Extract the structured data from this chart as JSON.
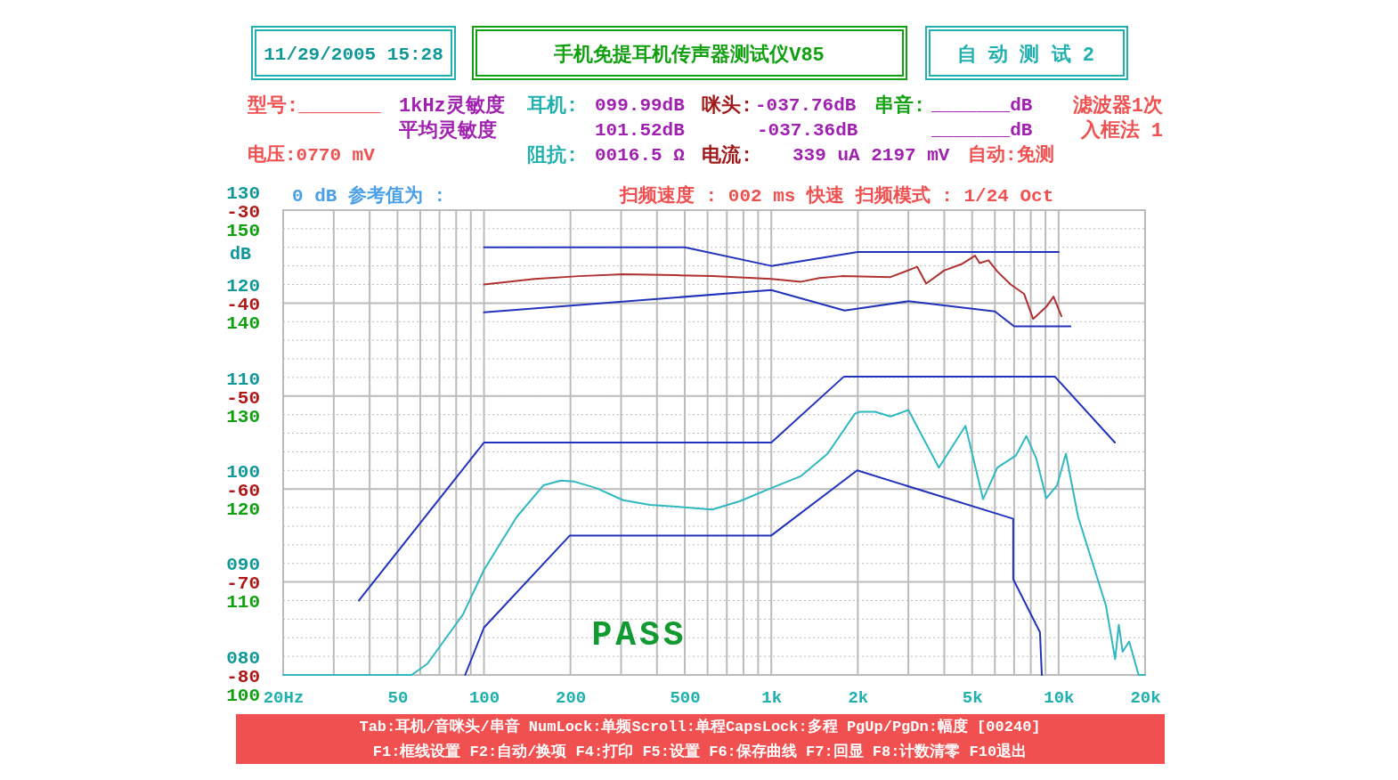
{
  "chart_data": {
    "type": "line",
    "title": "手机免提耳机传声器测试仪V85",
    "y2label": "dB",
    "log": "x",
    "grid": true,
    "xlim": [
      20,
      20000
    ],
    "xticks": [
      {
        "value": 20,
        "label": "20Hz"
      },
      {
        "value": 30,
        "label": null
      },
      {
        "value": 40,
        "label": null
      },
      50,
      {
        "value": 60,
        "label": null
      },
      {
        "value": 70,
        "label": null
      },
      {
        "value": 80,
        "label": null
      },
      {
        "value": 90,
        "label": null
      },
      100,
      200,
      {
        "value": 300,
        "label": null
      },
      {
        "value": 400,
        "label": null
      },
      500,
      {
        "value": 600,
        "label": null
      },
      {
        "value": 700,
        "label": null
      },
      {
        "value": 800,
        "label": null
      },
      {
        "value": 900,
        "label": null
      },
      {
        "value": 1000,
        "label": "1k"
      },
      {
        "value": 2000,
        "label": "2k"
      },
      {
        "value": 3000,
        "label": null
      },
      {
        "value": 4000,
        "label": null
      },
      {
        "value": 5000,
        "label": "5k"
      },
      {
        "value": 6000,
        "label": null
      },
      {
        "value": 7000,
        "label": null
      },
      {
        "value": 8000,
        "label": null
      },
      {
        "value": 9000,
        "label": null
      },
      {
        "value": 10000,
        "label": "10k"
      },
      {
        "value": 20000,
        "label": "20k"
      }
    ],
    "ylim": [
      -80,
      -30
    ],
    "yticks": [
      -80,
      -70,
      -60,
      -50,
      -40,
      -30
    ],
    "y2lim": [
      80,
      130
    ],
    "y2ticks": [
      {
        "value": 80,
        "label": "080"
      },
      {
        "value": 90,
        "label": "090"
      },
      100,
      110,
      120,
      130
    ],
    "y3lim": [
      100,
      150
    ],
    "y3ticks": [
      100,
      110,
      120,
      130,
      140,
      150
    ],
    "series": [
      {
        "color": "#b03030",
        "x": [
          100,
          150,
          214,
          305,
          468,
          623,
          1000,
          1270,
          1470,
          1760,
          2600,
          3220,
          3460,
          3990,
          4600,
          5120,
          5310,
          5700,
          6120,
          6810,
          7580,
          8150,
          9060,
          9600,
          10230
        ],
        "values": [
          -38.0,
          -37.4,
          -37.1,
          -36.9,
          -37.0,
          -37.1,
          -37.4,
          -37.7,
          -37.3,
          -37.1,
          -37.2,
          -36.1,
          -37.9,
          -36.5,
          -35.8,
          -34.9,
          -35.7,
          -35.4,
          -36.6,
          -38.0,
          -39.0,
          -41.7,
          -40.4,
          -39.3,
          -41.4
        ]
      },
      {
        "color": "#2233bb",
        "x": [
          100,
          500,
          1000,
          2000,
          10000
        ],
        "values": [
          -34,
          -34,
          -36,
          -34.5,
          -34.5
        ]
      },
      {
        "color": "#2233bb",
        "x": [
          100,
          1000,
          1800,
          3000,
          6000,
          7000,
          11000
        ],
        "values": [
          -41,
          -38.6,
          -40.8,
          -39.8,
          -40.9,
          -42.5,
          -42.5
        ]
      },
      {
        "color": "#30b8c0",
        "axis": "y2",
        "x": [
          20,
          56,
          63.5,
          84.5,
          100,
          130,
          161,
          185,
          206,
          246,
          305,
          378,
          468,
          623,
          779,
          1000,
          1270,
          1570,
          1955,
          2030,
          2300,
          2600,
          3000,
          3830,
          4740,
          5460,
          6120,
          7100,
          7720,
          8360,
          9060,
          9880,
          10600,
          11690,
          14600,
          15730,
          16200,
          16700,
          17600,
          18980,
          20000
        ],
        "values": [
          80,
          80,
          81.2,
          86.5,
          91.3,
          97.0,
          100.4,
          100.9,
          100.8,
          100.1,
          98.8,
          98.3,
          98.1,
          97.8,
          98.7,
          100.1,
          101.4,
          103.8,
          108.1,
          108.3,
          108.3,
          107.8,
          108.5,
          102.3,
          106.8,
          98.9,
          102.3,
          103.6,
          105.7,
          103.3,
          99.0,
          100.4,
          103.8,
          97.0,
          87.5,
          81.7,
          85.4,
          82.5,
          83.6,
          80,
          80
        ]
      },
      {
        "color": "#2233bb",
        "axis": "y2",
        "x": [
          36.7,
          100,
          1000,
          1790,
          9700,
          15700
        ],
        "values": [
          88,
          105,
          105,
          112.1,
          112.1,
          105
        ]
      },
      {
        "color": "#2233bb",
        "axis": "y2",
        "x": [
          86,
          100,
          199,
          1000,
          1990,
          6950,
          6950,
          8610,
          8740
        ],
        "values": [
          80,
          85.1,
          95,
          95,
          102,
          96.8,
          90.3,
          84.6,
          80
        ]
      }
    ],
    "annotations": [
      "11/29/2005 15:28",
      "自 动 测 试 2",
      "型号:_______",
      "1kHz灵敏度",
      "平均灵敏度",
      "耳机:",
      "099.99dB",
      "101.52dB",
      "咪头:",
      "-037.76dB",
      "-037.36dB",
      "串音:",
      "_______dB",
      "_______dB",
      "滤波器1次",
      "入框法 1",
      "电压:0770 mV",
      "阻抗:",
      "0016.5 Ω",
      "电流:",
      "339 uA 2197 mV",
      "自动:免测",
      "0 dB 参考值为 :",
      "扫频速度 : 002 ms 快速   扫频模式 : 1/24 Oct",
      "PASS",
      "Tab:耳机/音咪头/串音 NumLock:单频Scroll:单程CapsLock:多程 PgUp/PgDn:幅度 [00240]",
      "F1:框线设置 F2:自动/换项 F4:打印 F5:设置 F6:保存曲线 F7:回显 F8:计数清零 F10退出"
    ]
  }
}
